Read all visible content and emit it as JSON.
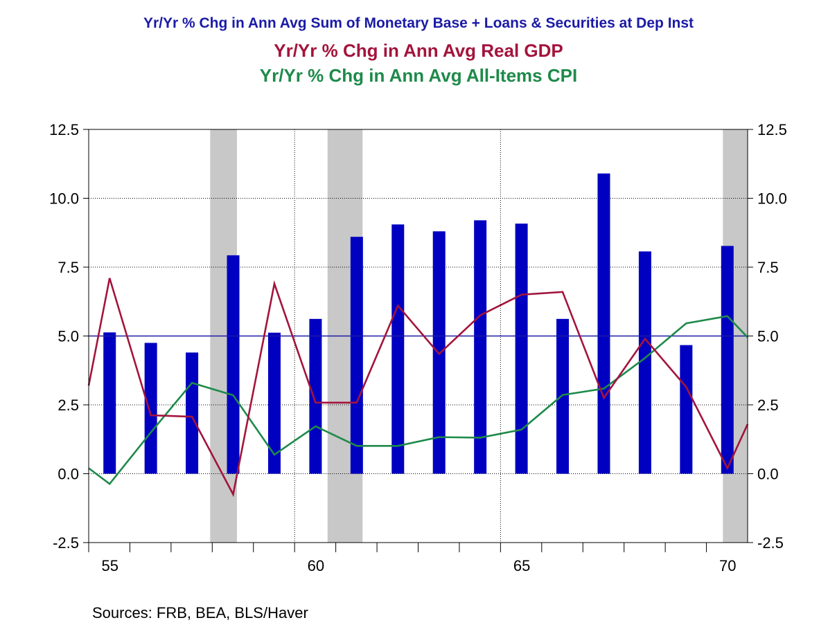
{
  "titles": [
    {
      "text": "Yr/Yr % Chg in Ann Avg Sum of Monetary Base + Loans & Securities at Dep Inst",
      "color": "#1a1aa6"
    },
    {
      "text": "Yr/Yr % Chg in Ann Avg Real GDP",
      "color": "#a3143c"
    },
    {
      "text": "Yr/Yr % Chg in Ann Avg All-Items CPI",
      "color": "#1e8a4a"
    }
  ],
  "source": "Sources:  FRB, BEA, BLS/Haver",
  "chart_data": {
    "type": "bar",
    "xlim": [
      1954.5,
      1970.5
    ],
    "ylim": [
      -2.5,
      12.5
    ],
    "y_ticks": [
      -2.5,
      0.0,
      2.5,
      5.0,
      7.5,
      10.0,
      12.5
    ],
    "y_tick_labels": [
      "-2.5",
      "0.0",
      "2.5",
      "5.0",
      "7.5",
      "10.0",
      "12.5"
    ],
    "x_ticks": [
      1955,
      1960,
      1965,
      1970
    ],
    "x_tick_labels": [
      "55",
      "60",
      "65",
      "70"
    ],
    "reference_line": 5.0,
    "recessions": [
      [
        1957.45,
        1958.1
      ],
      [
        1960.3,
        1961.15
      ],
      [
        1969.9,
        1970.8
      ]
    ],
    "series": [
      {
        "name": "Yr/Yr % Chg in Ann Avg Sum of Monetary Base + Loans & Securities at Dep Inst",
        "type": "bar",
        "color": "#0000c0",
        "x": [
          1955,
          1956,
          1957,
          1958,
          1959,
          1960,
          1961,
          1962,
          1963,
          1964,
          1965,
          1966,
          1967,
          1968,
          1969,
          1970
        ],
        "values": [
          5.13,
          4.75,
          4.4,
          7.93,
          5.12,
          5.62,
          8.6,
          9.05,
          8.8,
          9.2,
          9.08,
          5.62,
          10.9,
          8.07,
          4.67,
          8.27
        ]
      },
      {
        "name": "Yr/Yr % Chg in Ann Avg Real GDP",
        "type": "line",
        "color": "#a3143c",
        "x": [
          1954.5,
          1955,
          1956,
          1957,
          1958,
          1959,
          1960,
          1961,
          1962,
          1963,
          1964,
          1965,
          1966,
          1967,
          1968,
          1969,
          1970,
          1970.5
        ],
        "values": [
          3.2,
          7.1,
          2.12,
          2.07,
          -0.75,
          6.9,
          2.58,
          2.58,
          6.1,
          4.35,
          5.75,
          6.5,
          6.6,
          2.75,
          4.9,
          3.15,
          0.2,
          1.8
        ]
      },
      {
        "name": "Yr/Yr % Chg in Ann Avg All-Items CPI",
        "type": "line",
        "color": "#1e8a4a",
        "x": [
          1954.5,
          1955,
          1956,
          1957,
          1958,
          1959,
          1960,
          1961,
          1962,
          1963,
          1964,
          1965,
          1966,
          1967,
          1968,
          1969,
          1970,
          1970.5
        ],
        "values": [
          0.2,
          -0.37,
          1.5,
          3.3,
          2.85,
          0.69,
          1.72,
          1.01,
          1.01,
          1.33,
          1.31,
          1.6,
          2.86,
          3.09,
          4.2,
          5.46,
          5.72,
          4.95
        ]
      }
    ]
  }
}
